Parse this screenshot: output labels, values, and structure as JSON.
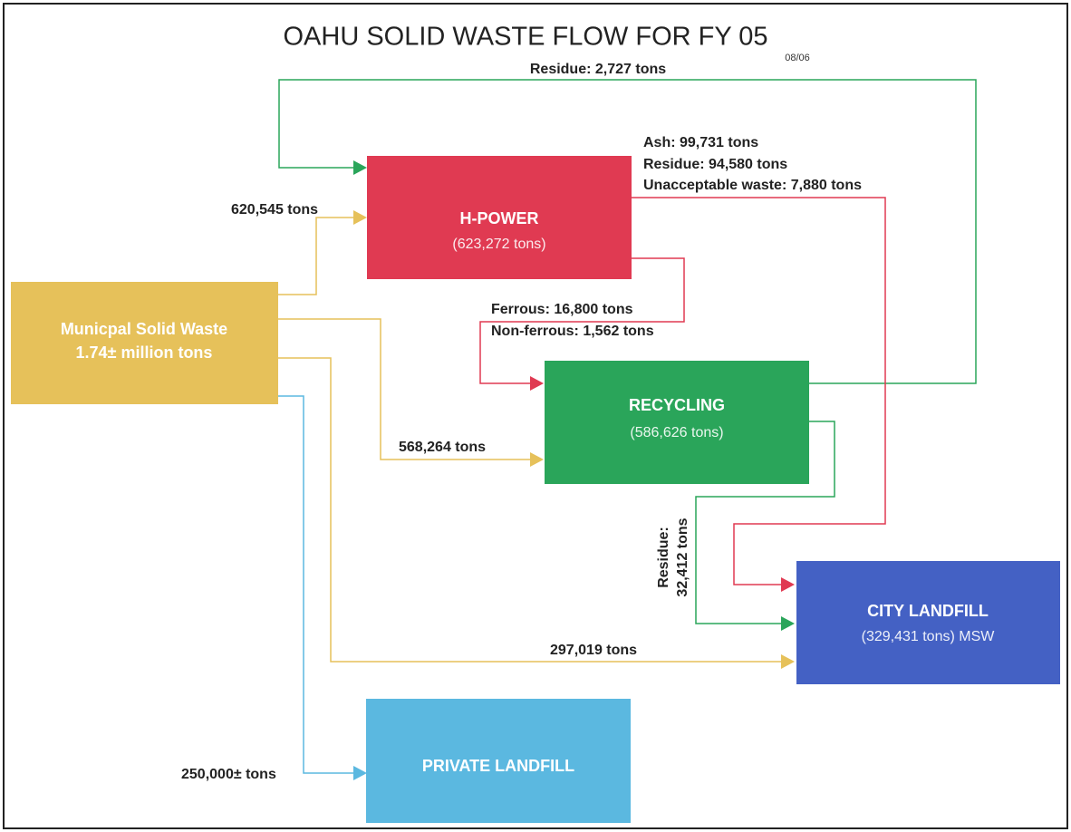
{
  "header": {
    "title": "OAHU SOLID WASTE FLOW FOR FY 05",
    "date": "08/06"
  },
  "nodes": [
    {
      "label": "Municpal Solid Waste",
      "sublabel": "1.74± million tons"
    },
    {
      "label": "H-POWER",
      "sublabel": "(623,272 tons)"
    },
    {
      "label": "RECYCLING",
      "sublabel": "(586,626 tons)"
    },
    {
      "label": "CITY LANDFILL",
      "sublabel": "(329,431 tons) MSW"
    },
    {
      "label": "PRIVATE LANDFILL"
    }
  ],
  "flows": [
    {
      "labels": [
        "Residue:  2,727 tons"
      ]
    },
    {
      "labels": [
        "Ash:  99,731 tons",
        "Residue:  94,580 tons",
        "Unacceptable waste:  7,880 tons"
      ]
    },
    {
      "labels": [
        "Ferrous:  16,800 tons",
        "Non-ferrous:  1,562 tons"
      ]
    },
    {
      "labels": [
        "620,545 tons"
      ]
    },
    {
      "labels": [
        "568,264 tons"
      ]
    },
    {
      "labels": [
        "297,019 tons"
      ]
    },
    {
      "labels": [
        "250,000± tons"
      ]
    },
    {
      "labels": [
        "Residue:",
        "32,412 tons"
      ]
    }
  ]
}
